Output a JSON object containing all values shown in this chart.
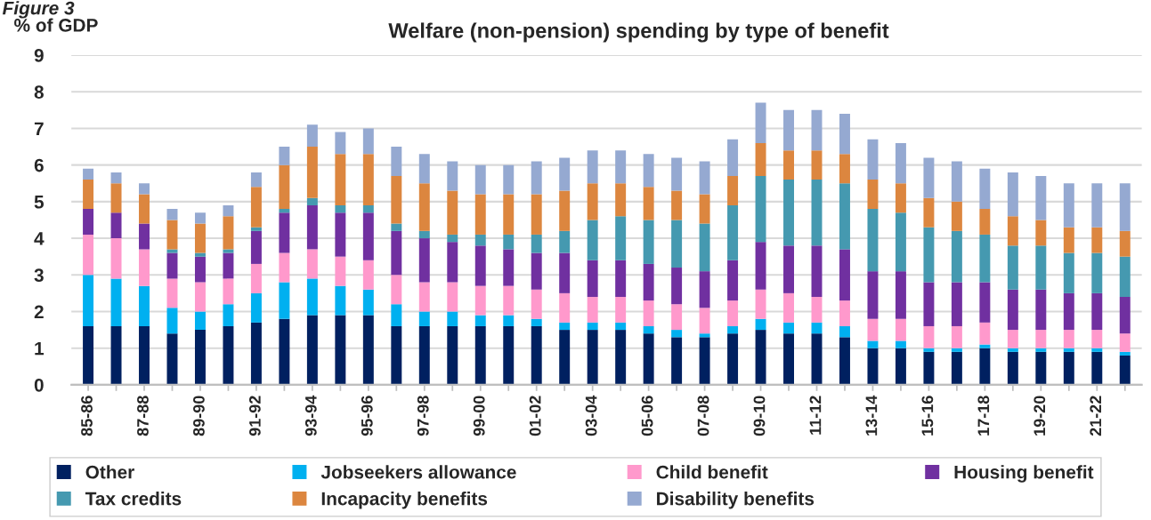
{
  "chart_data": {
    "type": "bar",
    "stacked": true,
    "title": "Welfare (non-pension) spending by type of benefit",
    "ylabel": "% of GDP",
    "annotations": [
      "Figure 3"
    ],
    "categories": [
      "85-86",
      null,
      "87-88",
      null,
      "89-90",
      null,
      "91-92",
      null,
      "93-94",
      null,
      "95-96",
      null,
      "97-98",
      null,
      "99-00",
      null,
      "01-02",
      null,
      "03-04",
      null,
      "05-06",
      null,
      "07-08",
      null,
      "09-10",
      null,
      "11-12",
      null,
      "13-14",
      null,
      "15-16",
      null,
      "17-18",
      null,
      "19-20",
      null,
      "21-22",
      null
    ],
    "ylim": [
      0,
      9
    ],
    "yticks": [
      0,
      1,
      2,
      3,
      4,
      5,
      6,
      7,
      8,
      9
    ],
    "grid": "y",
    "legend": "bottom",
    "series": [
      {
        "name": "Other",
        "color": "#002060",
        "values": [
          1.6,
          1.6,
          1.6,
          1.4,
          1.5,
          1.6,
          1.7,
          1.8,
          1.9,
          1.9,
          1.9,
          1.6,
          1.6,
          1.6,
          1.6,
          1.6,
          1.6,
          1.5,
          1.5,
          1.5,
          1.4,
          1.3,
          1.3,
          1.4,
          1.5,
          1.4,
          1.4,
          1.3,
          1.0,
          1.0,
          0.9,
          0.9,
          1.0,
          0.9,
          0.9,
          0.9,
          0.9,
          0.8
        ]
      },
      {
        "name": "Jobseekers allowance",
        "color": "#00b0f0",
        "values": [
          1.4,
          1.3,
          1.1,
          0.7,
          0.5,
          0.6,
          0.8,
          1.0,
          1.0,
          0.8,
          0.7,
          0.6,
          0.4,
          0.4,
          0.3,
          0.3,
          0.2,
          0.2,
          0.2,
          0.2,
          0.2,
          0.2,
          0.1,
          0.2,
          0.3,
          0.3,
          0.3,
          0.3,
          0.2,
          0.2,
          0.1,
          0.1,
          0.1,
          0.1,
          0.1,
          0.1,
          0.1,
          0.1
        ]
      },
      {
        "name": "Child benefit",
        "color": "#ff99cc",
        "values": [
          1.1,
          1.1,
          1.0,
          0.8,
          0.8,
          0.7,
          0.8,
          0.8,
          0.8,
          0.8,
          0.8,
          0.8,
          0.8,
          0.8,
          0.8,
          0.8,
          0.8,
          0.8,
          0.7,
          0.7,
          0.7,
          0.7,
          0.7,
          0.7,
          0.8,
          0.8,
          0.7,
          0.7,
          0.6,
          0.6,
          0.6,
          0.6,
          0.6,
          0.5,
          0.5,
          0.5,
          0.5,
          0.5
        ]
      },
      {
        "name": "Housing benefit",
        "color": "#7030a0",
        "values": [
          0.7,
          0.7,
          0.7,
          0.7,
          0.7,
          0.7,
          0.9,
          1.1,
          1.2,
          1.2,
          1.3,
          1.2,
          1.2,
          1.1,
          1.1,
          1.0,
          1.0,
          1.1,
          1.0,
          1.0,
          1.0,
          1.0,
          1.0,
          1.1,
          1.3,
          1.3,
          1.4,
          1.4,
          1.3,
          1.3,
          1.2,
          1.2,
          1.1,
          1.1,
          1.1,
          1.0,
          1.0,
          1.0
        ]
      },
      {
        "name": "Tax credits",
        "color": "#4599b0",
        "values": [
          0,
          0,
          0,
          0.1,
          0.1,
          0.1,
          0.1,
          0.1,
          0.2,
          0.2,
          0.2,
          0.2,
          0.2,
          0.2,
          0.3,
          0.4,
          0.5,
          0.6,
          1.1,
          1.2,
          1.2,
          1.3,
          1.3,
          1.5,
          1.8,
          1.8,
          1.8,
          1.8,
          1.7,
          1.6,
          1.5,
          1.4,
          1.3,
          1.2,
          1.2,
          1.1,
          1.1,
          1.1
        ]
      },
      {
        "name": "Incapacity benefits",
        "color": "#dc863f",
        "values": [
          0.8,
          0.8,
          0.8,
          0.8,
          0.8,
          0.9,
          1.1,
          1.2,
          1.4,
          1.4,
          1.4,
          1.3,
          1.3,
          1.2,
          1.1,
          1.1,
          1.1,
          1.1,
          1.0,
          0.9,
          0.9,
          0.8,
          0.8,
          0.8,
          0.9,
          0.8,
          0.8,
          0.8,
          0.8,
          0.8,
          0.8,
          0.8,
          0.7,
          0.8,
          0.7,
          0.7,
          0.7,
          0.7
        ]
      },
      {
        "name": "Disability benefits",
        "color": "#95a9d1",
        "values": [
          0.3,
          0.3,
          0.3,
          0.3,
          0.3,
          0.3,
          0.4,
          0.5,
          0.6,
          0.6,
          0.7,
          0.8,
          0.8,
          0.8,
          0.8,
          0.8,
          0.9,
          0.9,
          0.9,
          0.9,
          0.9,
          0.9,
          0.9,
          1.0,
          1.1,
          1.1,
          1.1,
          1.1,
          1.1,
          1.1,
          1.1,
          1.1,
          1.1,
          1.2,
          1.2,
          1.2,
          1.2,
          1.3
        ]
      }
    ]
  }
}
